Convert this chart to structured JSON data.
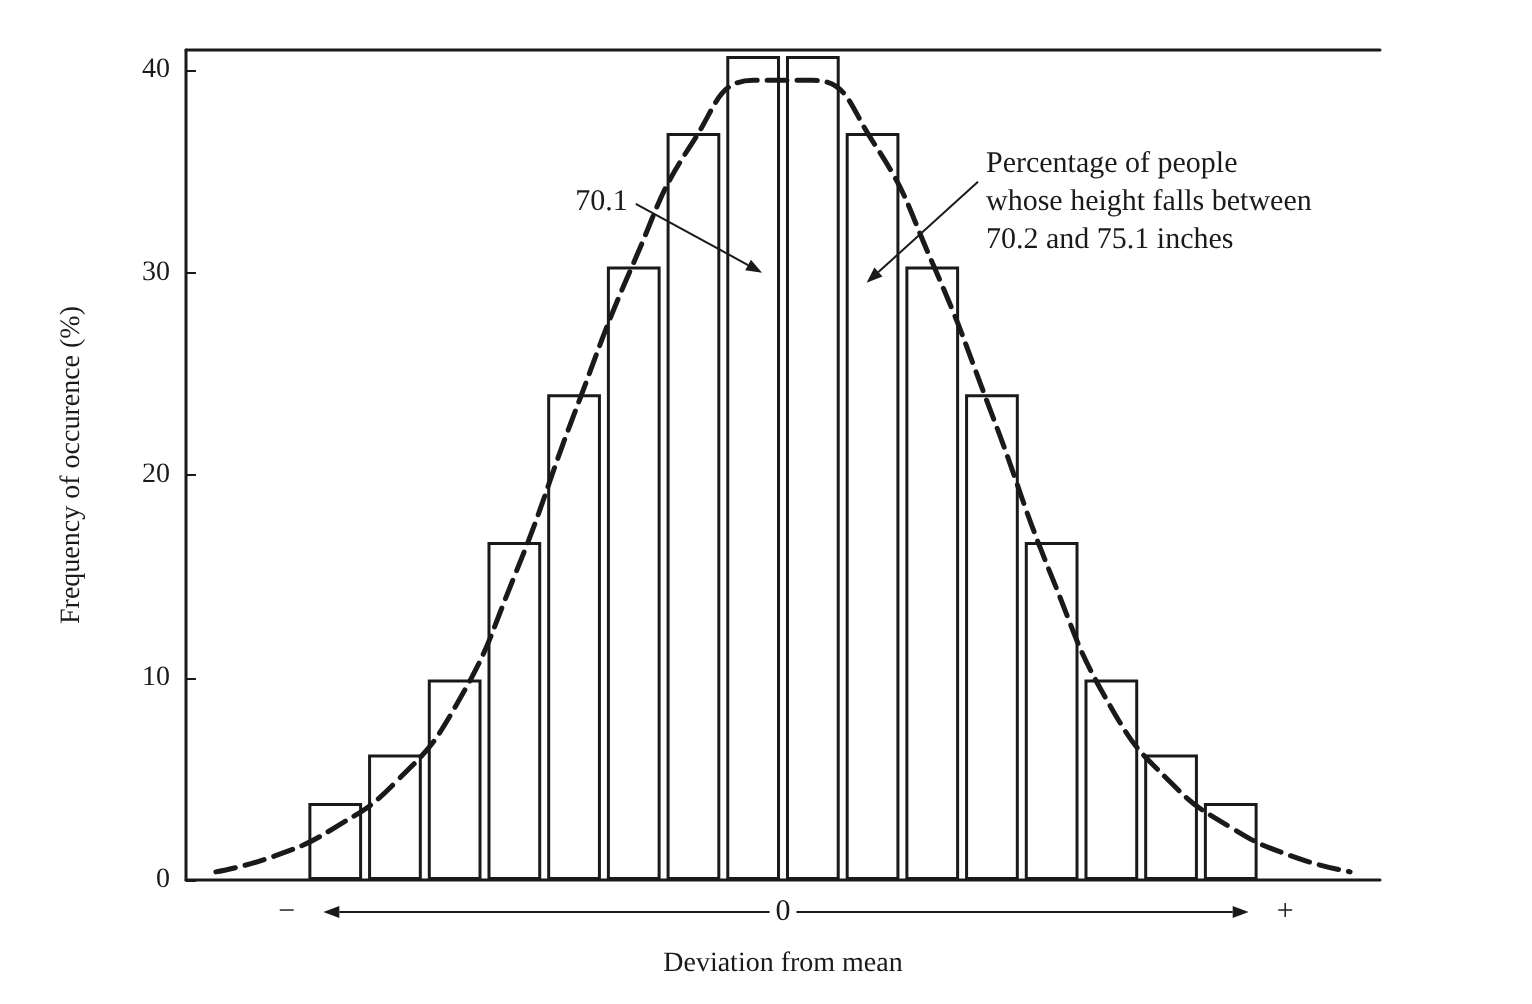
{
  "chart_data": {
    "type": "bar",
    "xlabel": "Deviation from mean",
    "ylabel": "Frequency of occurence (%)",
    "categories": [
      null,
      null,
      null,
      null,
      null,
      null,
      null,
      null,
      null,
      null,
      null,
      null,
      null,
      null,
      null,
      null,
      null,
      null,
      null,
      null
    ],
    "series": [
      {
        "color": "#ffffff",
        "values": [
          null,
          null,
          3.8,
          6.2,
          9.9,
          16.7,
          24.0,
          30.3,
          36.9,
          40.7,
          40.7,
          36.9,
          30.3,
          24.0,
          16.7,
          9.9,
          6.2,
          3.8,
          null,
          null
        ]
      },
      {
        "type": "line",
        "color": "#1a1a1a",
        "line_style": "dashed",
        "marker": "none",
        "values": [
          0.4,
          1.2,
          2.6,
          4.8,
          8.5,
          15.0,
          23.0,
          30.5,
          36.5,
          39.5,
          39.5,
          36.5,
          30.5,
          23.0,
          15.0,
          8.5,
          4.8,
          2.6,
          1.2,
          0.4
        ]
      }
    ],
    "ylim": [
      0,
      41
    ],
    "yticks": [
      0,
      10,
      20,
      30,
      40
    ],
    "grid": false,
    "annotations": [
      "70.1",
      "Percentage of people\nwhose height falls between\n70.2 and 75.1 inches",
      "−",
      "0",
      "+"
    ]
  }
}
